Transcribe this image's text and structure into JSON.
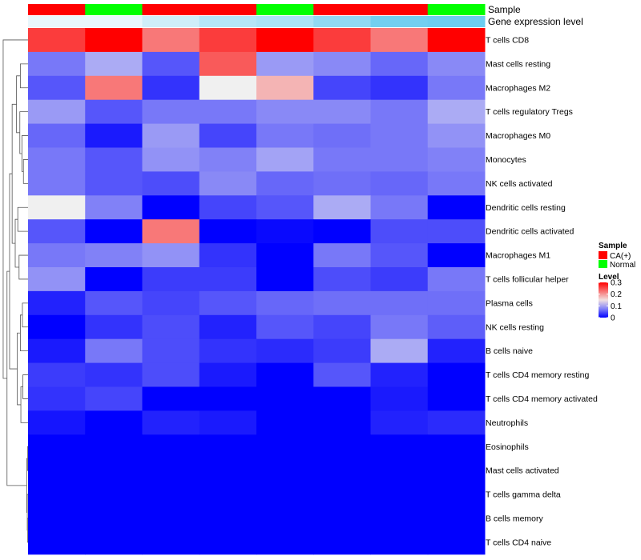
{
  "chart_data": {
    "type": "heatmap",
    "annotation_labels": [
      "Sample",
      "Gene expression level"
    ],
    "columns": [
      {
        "sample": "CA(+)",
        "gene_expression_level": 0.02
      },
      {
        "sample": "Normal",
        "gene_expression_level": 0.02
      },
      {
        "sample": "CA(+)",
        "gene_expression_level": 0.12
      },
      {
        "sample": "CA(+)",
        "gene_expression_level": 0.22
      },
      {
        "sample": "Normal",
        "gene_expression_level": 0.26
      },
      {
        "sample": "CA(+)",
        "gene_expression_level": 0.36
      },
      {
        "sample": "CA(+)",
        "gene_expression_level": 0.48
      },
      {
        "sample": "Normal",
        "gene_expression_level": 0.5
      }
    ],
    "rows": [
      {
        "label": "T cells CD8",
        "values": [
          0.26,
          0.3,
          0.22,
          0.26,
          0.3,
          0.26,
          0.22,
          0.3
        ]
      },
      {
        "label": "Mast cells resting",
        "values": [
          0.07,
          0.1,
          0.05,
          0.24,
          0.09,
          0.08,
          0.06,
          0.08
        ]
      },
      {
        "label": "Macrophages M2",
        "values": [
          0.05,
          0.22,
          0.03,
          0.14,
          0.18,
          0.04,
          0.03,
          0.07
        ]
      },
      {
        "label": "T cells regulatory  Tregs",
        "values": [
          0.09,
          0.05,
          0.07,
          0.07,
          0.08,
          0.08,
          0.07,
          0.1
        ]
      },
      {
        "label": "Macrophages M0",
        "values": [
          0.06,
          0.015,
          0.09,
          0.04,
          0.07,
          0.065,
          0.07,
          0.085
        ]
      },
      {
        "label": "Monocytes",
        "values": [
          0.07,
          0.05,
          0.085,
          0.075,
          0.095,
          0.07,
          0.07,
          0.075
        ]
      },
      {
        "label": "NK cells activated",
        "values": [
          0.07,
          0.05,
          0.045,
          0.08,
          0.06,
          0.065,
          0.06,
          0.07
        ]
      },
      {
        "label": "Dendritic cells resting",
        "values": [
          0.14,
          0.075,
          0.0,
          0.04,
          0.05,
          0.1,
          0.07,
          0.0
        ]
      },
      {
        "label": "Dendritic cells activated",
        "values": [
          0.05,
          0.0,
          0.22,
          0.0,
          0.005,
          0.0,
          0.045,
          0.045
        ]
      },
      {
        "label": "Macrophages M1",
        "values": [
          0.07,
          0.075,
          0.085,
          0.03,
          0.0,
          0.07,
          0.05,
          0.0
        ]
      },
      {
        "label": "T cells follicular helper",
        "values": [
          0.085,
          0.0,
          0.035,
          0.035,
          0.0,
          0.045,
          0.035,
          0.07
        ]
      },
      {
        "label": "Plasma cells",
        "values": [
          0.02,
          0.05,
          0.04,
          0.05,
          0.06,
          0.065,
          0.065,
          0.065
        ]
      },
      {
        "label": "NK cells resting",
        "values": [
          0.0,
          0.03,
          0.045,
          0.02,
          0.05,
          0.04,
          0.07,
          0.055
        ]
      },
      {
        "label": "B cells naive",
        "values": [
          0.015,
          0.07,
          0.045,
          0.03,
          0.025,
          0.035,
          0.1,
          0.02
        ]
      },
      {
        "label": "T cells CD4 memory resting",
        "values": [
          0.035,
          0.03,
          0.045,
          0.015,
          0.0,
          0.05,
          0.02,
          0.0
        ]
      },
      {
        "label": "T cells CD4 memory activated",
        "values": [
          0.03,
          0.04,
          0.0,
          0.0,
          0.0,
          0.0,
          0.015,
          0.0
        ]
      },
      {
        "label": "Neutrophils",
        "values": [
          0.012,
          0.0,
          0.02,
          0.015,
          0.0,
          0.0,
          0.02,
          0.025
        ]
      },
      {
        "label": "Eosinophils",
        "values": [
          0,
          0,
          0,
          0,
          0,
          0,
          0,
          0
        ]
      },
      {
        "label": "Mast cells activated",
        "values": [
          0,
          0,
          0,
          0,
          0,
          0,
          0,
          0
        ]
      },
      {
        "label": "T cells gamma delta",
        "values": [
          0,
          0,
          0,
          0,
          0,
          0,
          0,
          0
        ]
      },
      {
        "label": "B cells memory",
        "values": [
          0,
          0,
          0,
          0,
          0,
          0,
          0,
          0
        ]
      },
      {
        "label": "T cells CD4 naive",
        "values": [
          0,
          0,
          0,
          0,
          0,
          0,
          0,
          0
        ]
      }
    ],
    "legend": {
      "sample": {
        "title": "Sample",
        "items": [
          {
            "label": "CA(+)",
            "color": "#ff0000"
          },
          {
            "label": "Normal",
            "color": "#00ff00"
          }
        ]
      },
      "level": {
        "title": "Level",
        "range": [
          0,
          0.3
        ],
        "tick_labels": [
          "0.3",
          "0.2",
          "0.1",
          "0"
        ],
        "tick_values": [
          0.3,
          0.2,
          0.1,
          0
        ]
      }
    },
    "color_scale": {
      "low": "#0000ff",
      "mid": "#f0f0f0",
      "high": "#ff0000",
      "mid_value": 0.14
    },
    "gene_level_colors": {
      "low": "#eef8fc",
      "high": "#6dcdf0",
      "range": [
        0,
        0.5
      ]
    }
  }
}
